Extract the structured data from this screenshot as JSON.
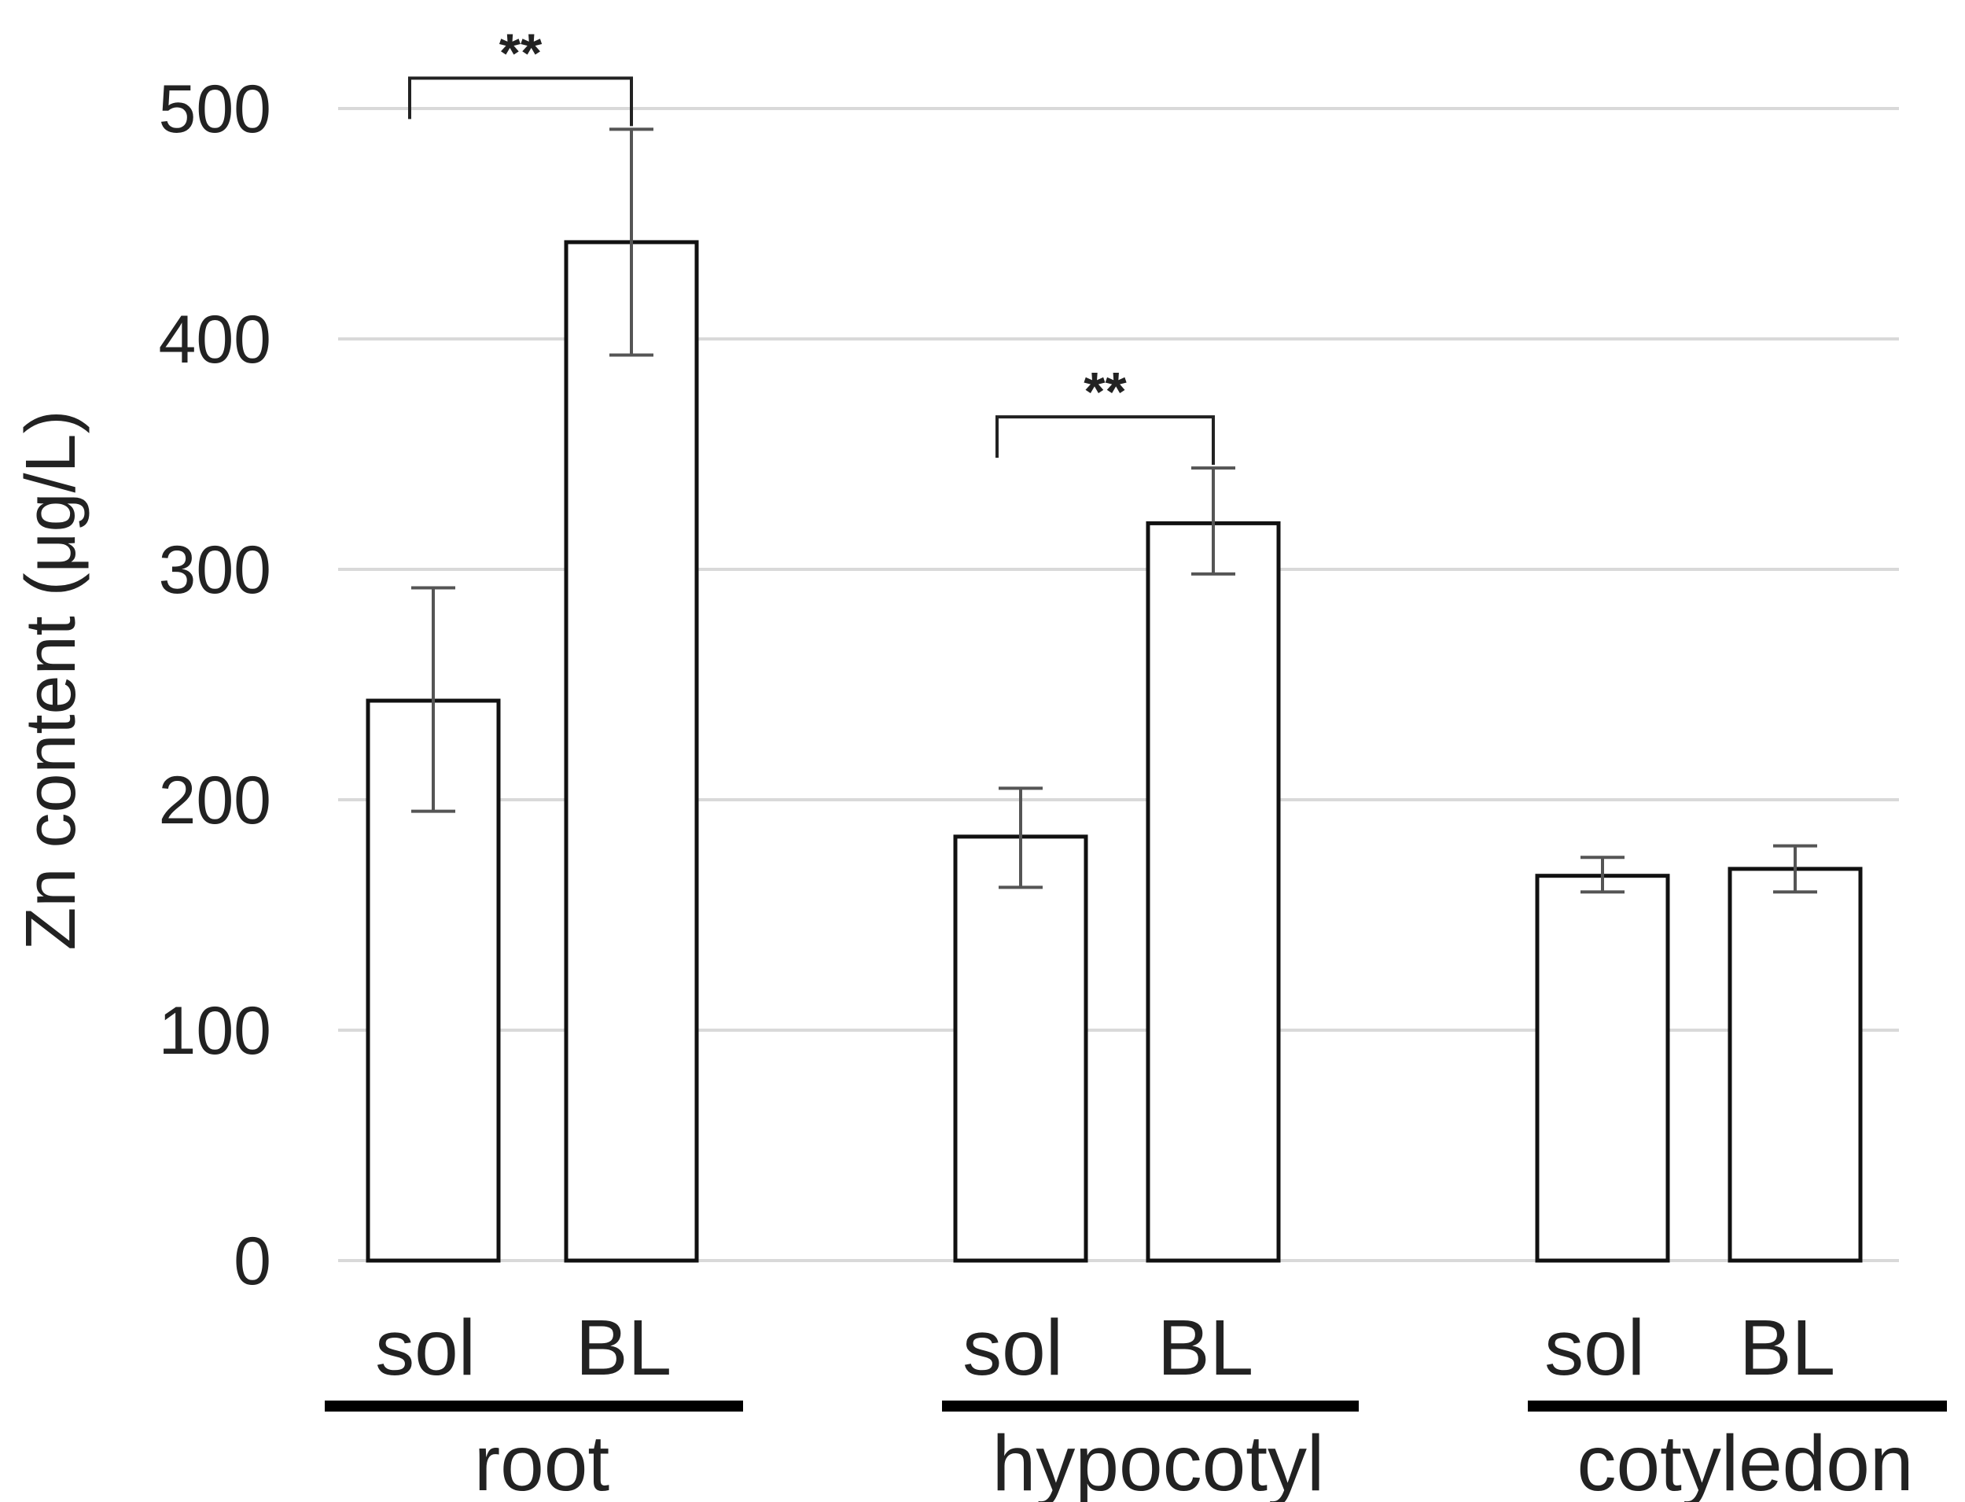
{
  "chart_data": {
    "type": "bar",
    "ylabel": "Zn content (μg/L)",
    "ylim": [
      0,
      500
    ],
    "yticks": [
      0,
      100,
      200,
      300,
      400,
      500
    ],
    "grid": true,
    "groups": [
      {
        "name": "root",
        "bars": [
          {
            "label": "sol",
            "value": 243,
            "error_low": 195,
            "error_high": 292
          },
          {
            "label": "BL",
            "value": 442,
            "error_low": 393,
            "error_high": 491
          }
        ],
        "significance": "**"
      },
      {
        "name": "hypocotyl",
        "bars": [
          {
            "label": "sol",
            "value": 184,
            "error_low": 162,
            "error_high": 205
          },
          {
            "label": "BL",
            "value": 320,
            "error_low": 298,
            "error_high": 344
          }
        ],
        "significance": "**"
      },
      {
        "name": "cotyledon",
        "bars": [
          {
            "label": "sol",
            "value": 167,
            "error_low": 160,
            "error_high": 175
          },
          {
            "label": "BL",
            "value": 170,
            "error_low": 160,
            "error_high": 180
          }
        ],
        "significance": ""
      }
    ]
  },
  "colors": {
    "bar_fill": "#ffffff",
    "bar_stroke": "#111111",
    "error_bar": "#555555",
    "grid": "#d9d9d9",
    "underline": "#000000"
  }
}
